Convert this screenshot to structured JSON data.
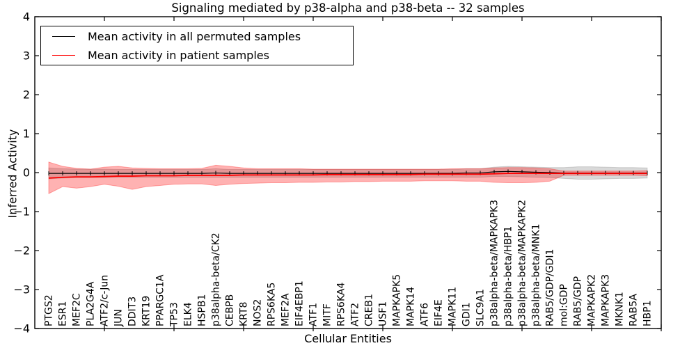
{
  "figure": {
    "background": "#ffffff"
  },
  "chart_data": {
    "type": "line",
    "title": "Signaling mediated by p38-alpha and p38-beta -- 32 samples",
    "xlabel": "Cellular Entities",
    "ylabel": "Inferred Activity",
    "ylim": [
      -4,
      4
    ],
    "yticks": [
      4,
      3,
      2,
      1,
      0,
      -1,
      -2,
      -3,
      -4
    ],
    "x_major_tick_every": 5,
    "grid": false,
    "legend_position": "upper left",
    "categories": [
      "PTGS2",
      "ESR1",
      "MEF2C",
      "PLA2G4A",
      "ATF2/c-Jun",
      "JUN",
      "DDIT3",
      "KRT19",
      "PPARGC1A",
      "TP53",
      "ELK4",
      "HSPB1",
      "p38alpha-beta/CK2",
      "CEBPB",
      "KRT8",
      "NOS2",
      "RPS6KA5",
      "MEF2A",
      "EIF4EBP1",
      "ATF1",
      "MITF",
      "RPS6KA4",
      "ATF2",
      "CREB1",
      "USF1",
      "MAPKAPK5",
      "MAPK14",
      "ATF6",
      "EIF4E",
      "MAPK11",
      "GDI1",
      "SLC9A1",
      "p38alpha-beta/MAPKAPK3",
      "p38alpha-beta/HBP1",
      "p38alpha-beta/MAPKAPK2",
      "p38alpha-beta/MNK1",
      "RAB5/GDP/GDI1",
      "mol:GDP",
      "RAB5/GDP",
      "MAPKAPK2",
      "MAPKAPK3",
      "MKNK1",
      "RAB5A",
      "HBP1"
    ],
    "series": [
      {
        "name": "Mean activity in all permuted samples",
        "color": "#000000",
        "marker": "|",
        "line_width": 1.2,
        "band_color": "rgba(0,0,0,0.15)",
        "values": [
          -0.02,
          -0.02,
          -0.02,
          -0.02,
          -0.02,
          -0.02,
          -0.02,
          -0.02,
          -0.02,
          -0.02,
          -0.02,
          -0.02,
          -0.01,
          -0.02,
          -0.02,
          -0.02,
          -0.02,
          -0.02,
          -0.02,
          -0.02,
          -0.02,
          -0.02,
          -0.02,
          -0.02,
          -0.02,
          -0.02,
          -0.02,
          -0.02,
          -0.02,
          -0.02,
          -0.01,
          -0.01,
          0.02,
          0.03,
          0.02,
          0.01,
          0.0,
          -0.01,
          -0.01,
          -0.01,
          -0.01,
          -0.01,
          -0.01,
          -0.01
        ],
        "band_upper": [
          0.12,
          0.1,
          0.09,
          0.09,
          0.09,
          0.08,
          0.08,
          0.08,
          0.08,
          0.08,
          0.08,
          0.08,
          0.1,
          0.08,
          0.08,
          0.08,
          0.08,
          0.08,
          0.08,
          0.08,
          0.08,
          0.08,
          0.08,
          0.08,
          0.08,
          0.08,
          0.08,
          0.08,
          0.08,
          0.08,
          0.1,
          0.1,
          0.14,
          0.16,
          0.15,
          0.14,
          0.13,
          0.13,
          0.15,
          0.15,
          0.14,
          0.13,
          0.13,
          0.12
        ],
        "band_lower": [
          -0.16,
          -0.14,
          -0.13,
          -0.13,
          -0.13,
          -0.12,
          -0.12,
          -0.12,
          -0.12,
          -0.12,
          -0.12,
          -0.12,
          -0.12,
          -0.12,
          -0.12,
          -0.12,
          -0.12,
          -0.12,
          -0.12,
          -0.12,
          -0.12,
          -0.12,
          -0.12,
          -0.12,
          -0.12,
          -0.12,
          -0.12,
          -0.12,
          -0.12,
          -0.12,
          -0.12,
          -0.12,
          -0.1,
          -0.1,
          -0.11,
          -0.12,
          -0.13,
          -0.15,
          -0.17,
          -0.17,
          -0.16,
          -0.15,
          -0.15,
          -0.14
        ]
      },
      {
        "name": "Mean activity in patient samples",
        "color": "#ff0000",
        "marker": "",
        "line_width": 1.8,
        "band_color": "rgba(255,0,0,0.30)",
        "values": [
          -0.14,
          -0.12,
          -0.11,
          -0.11,
          -0.1,
          -0.09,
          -0.09,
          -0.08,
          -0.08,
          -0.08,
          -0.07,
          -0.07,
          -0.07,
          -0.07,
          -0.06,
          -0.06,
          -0.06,
          -0.06,
          -0.06,
          -0.06,
          -0.05,
          -0.05,
          -0.05,
          -0.05,
          -0.05,
          -0.05,
          -0.05,
          -0.04,
          -0.04,
          -0.04,
          -0.04,
          -0.04,
          -0.03,
          -0.02,
          -0.02,
          -0.02,
          -0.02,
          -0.02,
          -0.02,
          -0.02,
          -0.02,
          -0.02,
          -0.02,
          -0.02
        ],
        "band_upper": [
          0.27,
          0.16,
          0.11,
          0.09,
          0.14,
          0.16,
          0.12,
          0.11,
          0.1,
          0.1,
          0.1,
          0.11,
          0.19,
          0.16,
          0.12,
          0.1,
          0.1,
          0.1,
          0.1,
          0.09,
          0.09,
          0.09,
          0.09,
          0.09,
          0.09,
          0.09,
          0.09,
          0.09,
          0.09,
          0.1,
          0.1,
          0.1,
          0.12,
          0.13,
          0.13,
          0.12,
          0.1,
          0.04,
          0.04,
          0.04,
          0.04,
          0.04,
          0.04,
          0.05
        ],
        "band_lower": [
          -0.54,
          -0.36,
          -0.4,
          -0.36,
          -0.3,
          -0.35,
          -0.43,
          -0.36,
          -0.33,
          -0.3,
          -0.29,
          -0.29,
          -0.33,
          -0.3,
          -0.28,
          -0.27,
          -0.26,
          -0.26,
          -0.25,
          -0.25,
          -0.24,
          -0.24,
          -0.23,
          -0.23,
          -0.22,
          -0.22,
          -0.22,
          -0.21,
          -0.21,
          -0.21,
          -0.22,
          -0.22,
          -0.25,
          -0.26,
          -0.26,
          -0.25,
          -0.22,
          -0.07,
          -0.07,
          -0.07,
          -0.07,
          -0.07,
          -0.07,
          -0.08
        ]
      }
    ]
  }
}
